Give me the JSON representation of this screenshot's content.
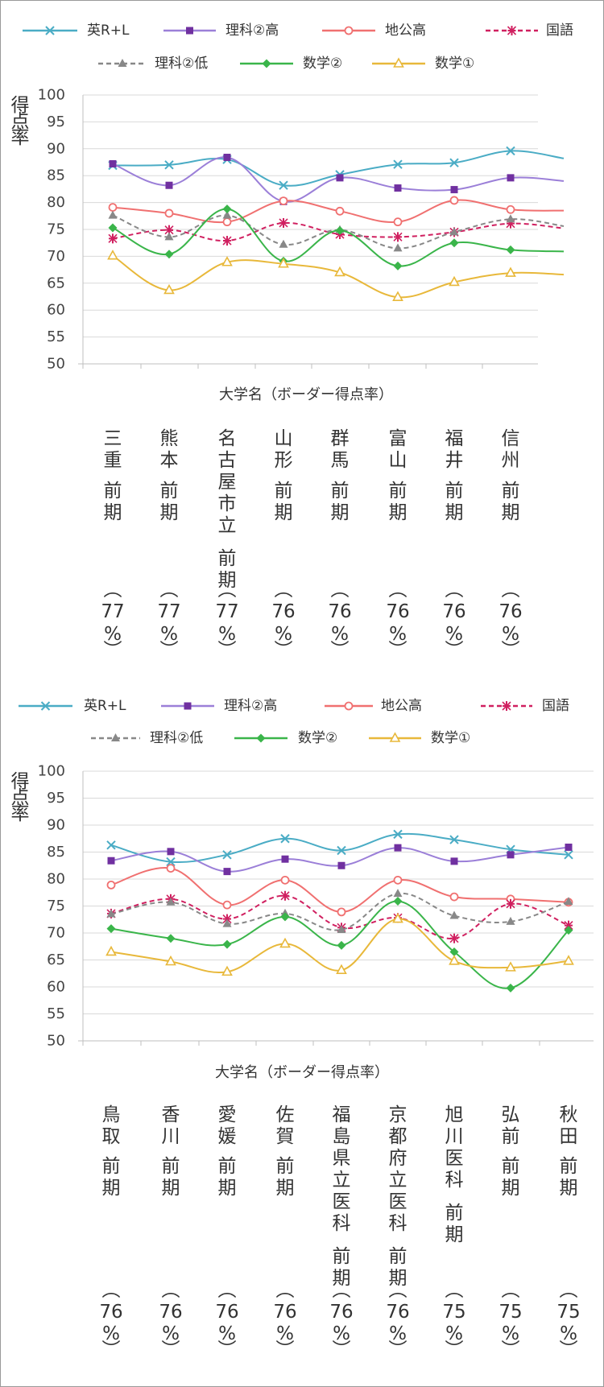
{
  "chart_data": [
    {
      "type": "line",
      "ylabel": "得点率",
      "xlabel": "大学名（ボーダー得点率）",
      "ylim": [
        50,
        100
      ],
      "yticks": [
        50,
        55,
        60,
        65,
        70,
        75,
        80,
        85,
        90,
        95,
        100
      ],
      "grid": true,
      "legend_position": "top",
      "categories": [
        "三重 前期（77%）",
        "熊本 前期（77%）",
        "名古屋市立 前期（77%）",
        "山形 前期（76%）",
        "群馬 前期（76%）",
        "富山 前期（76%）",
        "福井 前期（76%）",
        "信州 前期（76%）"
      ],
      "category_labels": [
        {
          "name": "三重",
          "suffix": "前期",
          "pct": "（77%）"
        },
        {
          "name": "熊本",
          "suffix": "前期",
          "pct": "（77%）"
        },
        {
          "name": "名古屋市立",
          "suffix": "前期",
          "pct": "（77%）"
        },
        {
          "name": "山形",
          "suffix": "前期",
          "pct": "（76%）"
        },
        {
          "name": "群馬",
          "suffix": "前期",
          "pct": "（76%）"
        },
        {
          "name": "富山",
          "suffix": "前期",
          "pct": "（76%）"
        },
        {
          "name": "福井",
          "suffix": "前期",
          "pct": "（76%）"
        },
        {
          "name": "信州",
          "suffix": "前期",
          "pct": "（76%）"
        }
      ],
      "series": [
        {
          "name": "英R+L",
          "color": "#4aacc5",
          "marker": "x",
          "dash": false,
          "values": [
            86.9,
            87.0,
            88.0,
            83.2,
            85.2,
            87.1,
            87.4,
            89.6
          ],
          "end_value": 88.2
        },
        {
          "name": "理科②高",
          "color": "#9b7fd8",
          "marker": "square",
          "marker_color": "#7030a0",
          "dash": false,
          "values": [
            87.2,
            83.2,
            88.4,
            80.2,
            84.6,
            82.7,
            82.4,
            84.6
          ],
          "end_value": 84.0
        },
        {
          "name": "地公高",
          "color": "#f07070",
          "marker": "circle",
          "dash": false,
          "values": [
            79.1,
            78.0,
            76.4,
            80.3,
            78.4,
            76.4,
            80.4,
            78.7
          ],
          "end_value": 78.5
        },
        {
          "name": "国語",
          "color": "#d02060",
          "marker": "asterisk",
          "dash": true,
          "values": [
            73.3,
            74.9,
            72.9,
            76.2,
            74.1,
            73.6,
            74.5,
            76.1
          ],
          "end_value": 75.2
        },
        {
          "name": "理科②低",
          "color": "#888888",
          "marker": "triangle-filled",
          "dash": true,
          "values": [
            77.6,
            73.6,
            77.6,
            72.2,
            74.9,
            71.5,
            74.5,
            76.9
          ],
          "end_value": 75.6
        },
        {
          "name": "数学②",
          "color": "#3ab54a",
          "marker": "diamond",
          "dash": false,
          "values": [
            75.3,
            70.4,
            78.8,
            69.1,
            74.8,
            68.2,
            72.5,
            71.2
          ],
          "end_value": 70.9
        },
        {
          "name": "数学①",
          "color": "#e8b83a",
          "marker": "triangle-open",
          "dash": false,
          "values": [
            70.1,
            63.7,
            68.9,
            68.6,
            67.0,
            62.4,
            65.2,
            66.9
          ],
          "end_value": 66.6
        }
      ]
    },
    {
      "type": "line",
      "ylabel": "得点率",
      "xlabel": "大学名（ボーダー得点率）",
      "ylim": [
        50,
        100
      ],
      "yticks": [
        50,
        55,
        60,
        65,
        70,
        75,
        80,
        85,
        90,
        95,
        100
      ],
      "grid": true,
      "legend_position": "top",
      "categories": [
        "鳥取 前期（76%）",
        "香川 前期（76%）",
        "愛媛 前期（76%）",
        "佐賀 前期（76%）",
        "福島県立医科 前期（76%）",
        "京都府立医科 前期（76%）",
        "旭川医科 前期（75%）",
        "弘前 前期（75%）",
        "秋田 前期（75%）"
      ],
      "category_labels": [
        {
          "name": "鳥取",
          "suffix": "前期",
          "pct": "（76%）"
        },
        {
          "name": "香川",
          "suffix": "前期",
          "pct": "（76%）"
        },
        {
          "name": "愛媛",
          "suffix": "前期",
          "pct": "（76%）"
        },
        {
          "name": "佐賀",
          "suffix": "前期",
          "pct": "（76%）"
        },
        {
          "name": "福島県立医科",
          "suffix": "前期",
          "pct": "（76%）"
        },
        {
          "name": "京都府立医科",
          "suffix": "前期",
          "pct": "（76%）"
        },
        {
          "name": "旭川医科",
          "suffix": "前期",
          "pct": "（75%）"
        },
        {
          "name": "弘前",
          "suffix": "前期",
          "pct": "（75%）"
        },
        {
          "name": "秋田",
          "suffix": "前期",
          "pct": "（75%）"
        }
      ],
      "series": [
        {
          "name": "英R+L",
          "color": "#4aacc5",
          "marker": "x",
          "dash": false,
          "values": [
            86.3,
            83.2,
            84.5,
            87.5,
            85.3,
            88.3,
            87.3,
            85.5,
            84.5
          ]
        },
        {
          "name": "理科②高",
          "color": "#9b7fd8",
          "marker": "square",
          "marker_color": "#7030a0",
          "dash": false,
          "values": [
            83.4,
            85.1,
            81.4,
            83.7,
            82.5,
            85.8,
            83.3,
            84.5,
            85.9
          ]
        },
        {
          "name": "地公高",
          "color": "#f07070",
          "marker": "circle",
          "dash": false,
          "values": [
            78.9,
            82.0,
            75.2,
            79.8,
            73.9,
            79.8,
            76.7,
            76.3,
            75.7
          ]
        },
        {
          "name": "国語",
          "color": "#d02060",
          "marker": "asterisk",
          "dash": true,
          "values": [
            73.6,
            76.3,
            72.6,
            76.9,
            71.0,
            72.8,
            69.0,
            75.4,
            71.4
          ]
        },
        {
          "name": "理科②低",
          "color": "#888888",
          "marker": "triangle-filled",
          "dash": true,
          "values": [
            73.5,
            75.7,
            71.7,
            73.6,
            70.6,
            77.3,
            73.2,
            72.1,
            75.8
          ]
        },
        {
          "name": "数学②",
          "color": "#3ab54a",
          "marker": "diamond",
          "dash": false,
          "values": [
            70.8,
            69.0,
            67.9,
            73.0,
            67.7,
            75.9,
            66.5,
            59.8,
            70.5
          ]
        },
        {
          "name": "数学①",
          "color": "#e8b83a",
          "marker": "triangle-open",
          "dash": false,
          "values": [
            66.5,
            64.7,
            62.8,
            68.0,
            63.1,
            72.6,
            64.8,
            63.6,
            64.8
          ]
        }
      ]
    }
  ]
}
